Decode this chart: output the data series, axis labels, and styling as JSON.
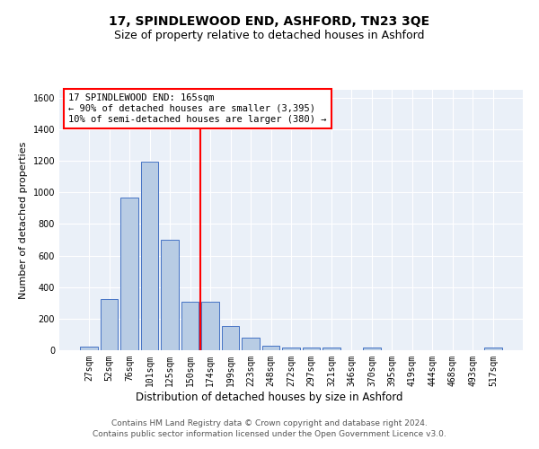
{
  "title": "17, SPINDLEWOOD END, ASHFORD, TN23 3QE",
  "subtitle": "Size of property relative to detached houses in Ashford",
  "xlabel": "Distribution of detached houses by size in Ashford",
  "ylabel": "Number of detached properties",
  "bar_labels": [
    "27sqm",
    "52sqm",
    "76sqm",
    "101sqm",
    "125sqm",
    "150sqm",
    "174sqm",
    "199sqm",
    "223sqm",
    "248sqm",
    "272sqm",
    "297sqm",
    "321sqm",
    "346sqm",
    "370sqm",
    "395sqm",
    "419sqm",
    "444sqm",
    "468sqm",
    "493sqm",
    "517sqm"
  ],
  "bar_values": [
    25,
    325,
    970,
    1195,
    700,
    310,
    310,
    155,
    80,
    30,
    18,
    15,
    15,
    0,
    15,
    0,
    0,
    0,
    0,
    0,
    15
  ],
  "bar_color": "#b8cce4",
  "bar_edge_color": "#4472c4",
  "vline_color": "red",
  "annotation_text": "17 SPINDLEWOOD END: 165sqm\n← 90% of detached houses are smaller (3,395)\n10% of semi-detached houses are larger (380) →",
  "annotation_box_color": "white",
  "annotation_box_edge": "red",
  "ylim": [
    0,
    1650
  ],
  "yticks": [
    0,
    200,
    400,
    600,
    800,
    1000,
    1200,
    1400,
    1600
  ],
  "bg_color": "#eaf0f8",
  "grid_color": "white",
  "footer_text": "Contains HM Land Registry data © Crown copyright and database right 2024.\nContains public sector information licensed under the Open Government Licence v3.0.",
  "title_fontsize": 10,
  "subtitle_fontsize": 9,
  "xlabel_fontsize": 8.5,
  "ylabel_fontsize": 8,
  "tick_fontsize": 7,
  "annotation_fontsize": 7.5,
  "footer_fontsize": 6.5
}
